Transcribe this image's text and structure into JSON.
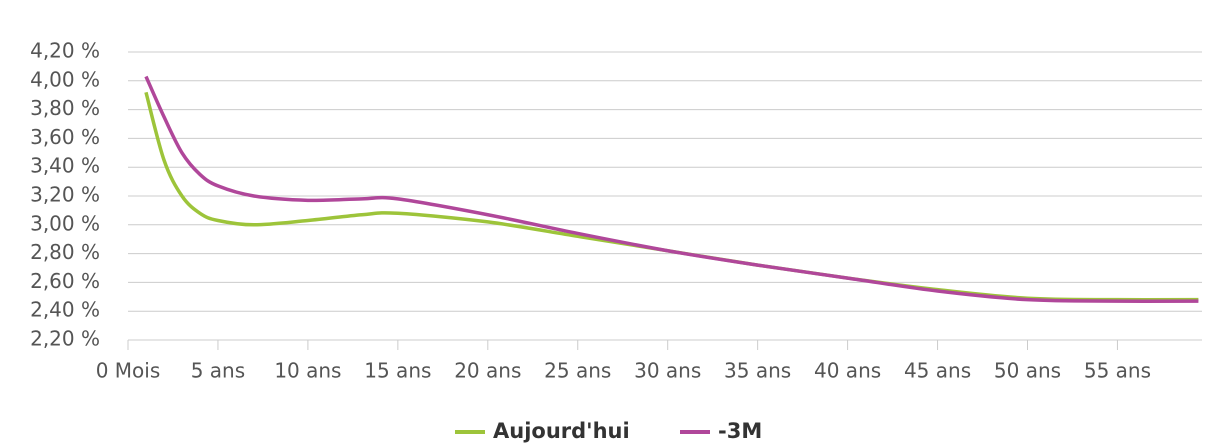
{
  "chart_data": {
    "type": "line",
    "x": [
      1,
      2,
      3,
      4,
      5,
      7,
      10,
      13,
      15,
      20,
      25,
      30,
      35,
      40,
      45,
      50,
      55,
      59.5
    ],
    "series": [
      {
        "name": "Aujourd'hui",
        "color": "#9dc43a",
        "values": [
          3.92,
          3.45,
          3.2,
          3.08,
          3.03,
          3.0,
          3.03,
          3.07,
          3.08,
          3.02,
          2.92,
          2.82,
          2.72,
          2.63,
          2.55,
          2.49,
          2.48,
          2.48
        ]
      },
      {
        "name": "-3M",
        "color": "#b0479a",
        "values": [
          4.03,
          3.75,
          3.5,
          3.35,
          3.27,
          3.2,
          3.17,
          3.18,
          3.18,
          3.07,
          2.94,
          2.82,
          2.72,
          2.63,
          2.54,
          2.48,
          2.47,
          2.47
        ]
      }
    ],
    "xlim": [
      0,
      59.7
    ],
    "xticks": [
      {
        "value": 0,
        "label": "0 Mois"
      },
      {
        "value": 5,
        "label": "5 ans"
      },
      {
        "value": 10,
        "label": "10 ans"
      },
      {
        "value": 15,
        "label": "15 ans"
      },
      {
        "value": 20,
        "label": "20 ans"
      },
      {
        "value": 25,
        "label": "25 ans"
      },
      {
        "value": 30,
        "label": "30 ans"
      },
      {
        "value": 35,
        "label": "35 ans"
      },
      {
        "value": 40,
        "label": "40 ans"
      },
      {
        "value": 45,
        "label": "45 ans"
      },
      {
        "value": 50,
        "label": "50 ans"
      },
      {
        "value": 55,
        "label": "55 ans"
      }
    ],
    "ylim": [
      2.2,
      4.2
    ],
    "yticks": [
      {
        "value": 2.2,
        "label": "2,20 %"
      },
      {
        "value": 2.4,
        "label": "2,40 %"
      },
      {
        "value": 2.6,
        "label": "2,60 %"
      },
      {
        "value": 2.8,
        "label": "2,80 %"
      },
      {
        "value": 3.0,
        "label": "3,00 %"
      },
      {
        "value": 3.2,
        "label": "3,20 %"
      },
      {
        "value": 3.4,
        "label": "3,40 %"
      },
      {
        "value": 3.6,
        "label": "3,60 %"
      },
      {
        "value": 3.8,
        "label": "3,80 %"
      },
      {
        "value": 4.0,
        "label": "4,00 %"
      },
      {
        "value": 4.2,
        "label": "4,20 %"
      }
    ],
    "grid": true
  }
}
